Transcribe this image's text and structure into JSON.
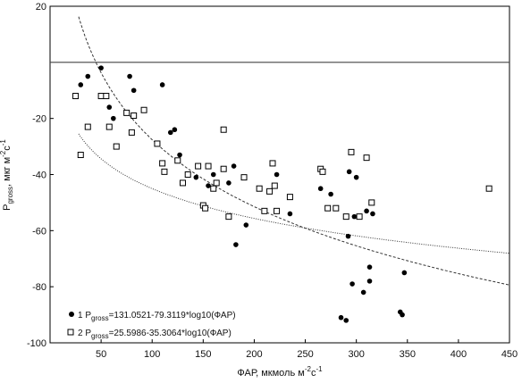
{
  "chart_data": {
    "type": "scatter",
    "xlabel": "ФАР, мкмоль м",
    "xlabel_sup": "-2",
    "xlabel_tail": "с",
    "xlabel_tail_sup": "-1",
    "ylabel_main": "P",
    "ylabel_sub": "gross",
    "ylabel_rest": ", мкг м",
    "ylabel_sup1": "-2",
    "ylabel_mid": "с",
    "ylabel_sup2": "-1",
    "xlim": [
      0,
      450
    ],
    "ylim": [
      -100,
      20
    ],
    "xticks": [
      50,
      100,
      150,
      200,
      250,
      300,
      350,
      400,
      450
    ],
    "yticks": [
      20,
      -20,
      -40,
      -60,
      -80,
      -100
    ],
    "reference_line_y": 0,
    "series": [
      {
        "name": "1",
        "marker": "filled-circle",
        "legend_prefix": "1 P",
        "legend_sub": "gross",
        "legend_formula": "=131.0521-79.3119*log10(ФАР)",
        "fit": {
          "a": 131.0521,
          "b": -79.3119,
          "style": "dashed"
        },
        "points": [
          [
            30,
            -8
          ],
          [
            37,
            -5
          ],
          [
            50,
            -2
          ],
          [
            58,
            -16
          ],
          [
            62,
            -20
          ],
          [
            78,
            -5
          ],
          [
            82,
            -10
          ],
          [
            110,
            -8
          ],
          [
            118,
            -25
          ],
          [
            122,
            -24
          ],
          [
            127,
            -33
          ],
          [
            143,
            -41
          ],
          [
            155,
            -44
          ],
          [
            160,
            -40
          ],
          [
            175,
            -43
          ],
          [
            180,
            -37
          ],
          [
            182,
            -65
          ],
          [
            192,
            -58
          ],
          [
            222,
            -40
          ],
          [
            235,
            -54
          ],
          [
            265,
            -45
          ],
          [
            275,
            -47
          ],
          [
            285,
            -91
          ],
          [
            290,
            -92
          ],
          [
            292,
            -62
          ],
          [
            293,
            -39
          ],
          [
            296,
            -79
          ],
          [
            298,
            -55
          ],
          [
            300,
            -41
          ],
          [
            307,
            -82
          ],
          [
            310,
            -53
          ],
          [
            313,
            -73
          ],
          [
            313,
            -78
          ],
          [
            316,
            -54
          ],
          [
            343,
            -89
          ],
          [
            345,
            -90
          ],
          [
            347,
            -75
          ]
        ]
      },
      {
        "name": "2",
        "marker": "open-square",
        "legend_prefix": "2 P",
        "legend_sub": "gross",
        "legend_formula": "=25.5986-35.3064*log10(ФАР)",
        "fit": {
          "a": 25.5986,
          "b": -35.3064,
          "style": "dotted"
        },
        "points": [
          [
            25,
            -12
          ],
          [
            30,
            -33
          ],
          [
            37,
            -23
          ],
          [
            50,
            -12
          ],
          [
            55,
            -12
          ],
          [
            58,
            -23
          ],
          [
            65,
            -30
          ],
          [
            75,
            -18
          ],
          [
            80,
            -25
          ],
          [
            82,
            -19
          ],
          [
            92,
            -17
          ],
          [
            105,
            -29
          ],
          [
            110,
            -36
          ],
          [
            112,
            -39
          ],
          [
            125,
            -35
          ],
          [
            130,
            -43
          ],
          [
            135,
            -40
          ],
          [
            145,
            -37
          ],
          [
            150,
            -51
          ],
          [
            152,
            -52
          ],
          [
            155,
            -37
          ],
          [
            160,
            -45
          ],
          [
            163,
            -43
          ],
          [
            170,
            -24
          ],
          [
            170,
            -38
          ],
          [
            175,
            -55
          ],
          [
            190,
            -41
          ],
          [
            205,
            -45
          ],
          [
            210,
            -53
          ],
          [
            215,
            -46
          ],
          [
            218,
            -36
          ],
          [
            220,
            -44
          ],
          [
            222,
            -53
          ],
          [
            235,
            -48
          ],
          [
            265,
            -38
          ],
          [
            267,
            -39
          ],
          [
            272,
            -52
          ],
          [
            280,
            -52
          ],
          [
            290,
            -55
          ],
          [
            295,
            -32
          ],
          [
            303,
            -55
          ],
          [
            310,
            -34
          ],
          [
            315,
            -50
          ],
          [
            430,
            -45
          ]
        ]
      }
    ]
  }
}
